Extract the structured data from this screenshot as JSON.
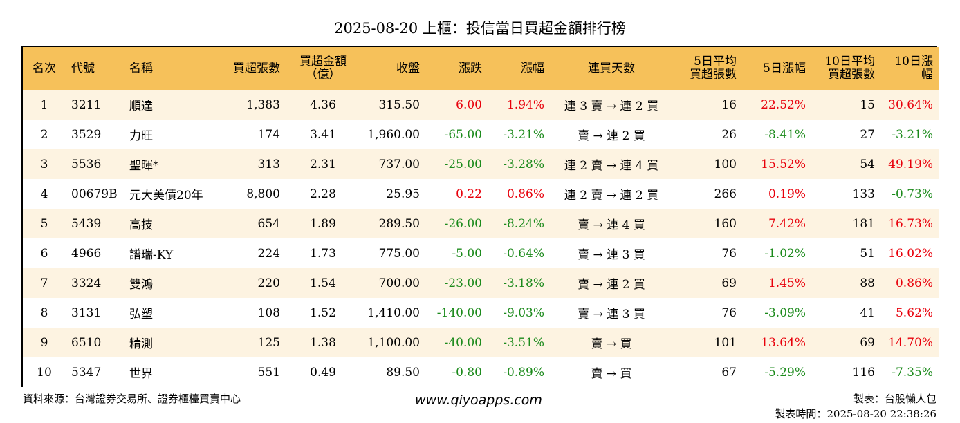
{
  "title": "2025-08-20 上櫃：投信當日買超金額排行榜",
  "colors": {
    "header_bg": "#f6c15a",
    "row_alt_bg": "#fdf3e1",
    "up": "#e8000b",
    "down": "#1b8a1b"
  },
  "headers": [
    "名次",
    "代號",
    "名稱",
    "買超張數",
    "買超金額\n（億）",
    "收盤",
    "漲跌",
    "漲幅",
    "連買天數",
    "5日平均\n買超張數",
    "5日漲幅",
    "10日平均\n買超張數",
    "10日漲幅"
  ],
  "rows": [
    [
      "1",
      "3211",
      "順達",
      "1,383",
      "4.36",
      "315.50",
      "6.00",
      "1.94%",
      "連 3 賣 → 連 2 買",
      "16",
      "22.52%",
      "15",
      "30.64%"
    ],
    [
      "2",
      "3529",
      "力旺",
      "174",
      "3.41",
      "1,960.00",
      "-65.00",
      "-3.21%",
      "賣 → 連 2 買",
      "26",
      "-8.41%",
      "27",
      "-3.21%"
    ],
    [
      "3",
      "5536",
      "聖暉*",
      "313",
      "2.31",
      "737.00",
      "-25.00",
      "-3.28%",
      "連 2 賣 → 連 4 買",
      "100",
      "15.52%",
      "54",
      "49.19%"
    ],
    [
      "4",
      "00679B",
      "元大美債20年",
      "8,800",
      "2.28",
      "25.95",
      "0.22",
      "0.86%",
      "連 2 賣 → 連 2 買",
      "266",
      "0.19%",
      "133",
      "-0.73%"
    ],
    [
      "5",
      "5439",
      "高技",
      "654",
      "1.89",
      "289.50",
      "-26.00",
      "-8.24%",
      "賣 → 連 4 買",
      "160",
      "7.42%",
      "181",
      "16.73%"
    ],
    [
      "6",
      "4966",
      "譜瑞-KY",
      "224",
      "1.73",
      "775.00",
      "-5.00",
      "-0.64%",
      "賣 → 連 3 買",
      "76",
      "-1.02%",
      "51",
      "16.02%"
    ],
    [
      "7",
      "3324",
      "雙鴻",
      "220",
      "1.54",
      "700.00",
      "-23.00",
      "-3.18%",
      "賣 → 連 2 買",
      "69",
      "1.45%",
      "88",
      "0.86%"
    ],
    [
      "8",
      "3131",
      "弘塑",
      "108",
      "1.52",
      "1,410.00",
      "-140.00",
      "-9.03%",
      "賣 → 連 3 買",
      "76",
      "-3.09%",
      "41",
      "5.62%"
    ],
    [
      "9",
      "6510",
      "精測",
      "125",
      "1.38",
      "1,100.00",
      "-40.00",
      "-3.51%",
      "賣 → 買",
      "101",
      "13.64%",
      "69",
      "14.70%"
    ],
    [
      "10",
      "5347",
      "世界",
      "551",
      "0.49",
      "89.50",
      "-0.80",
      "-0.89%",
      "賣 → 買",
      "67",
      "-5.29%",
      "116",
      "-7.35%"
    ]
  ],
  "footer": {
    "source": "資料來源：台灣證券交易所、證券櫃檯買賣中心",
    "website": "www.qiyoapps.com",
    "maker": "製表：台股懶人包",
    "made_time": "製表時間：2025-08-20 22:38:26"
  }
}
